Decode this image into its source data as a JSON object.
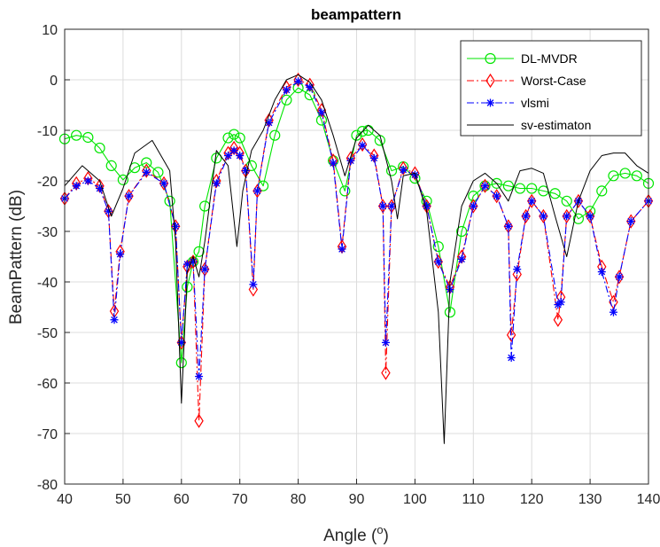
{
  "chart_data": {
    "type": "line",
    "title": "beampattern",
    "xlabel": "Angle (",
    "xlabel_sup": "o",
    "xlabel_end": ")",
    "ylabel": "BeamPattern (dB)",
    "xlim": [
      40,
      140
    ],
    "ylim": [
      -80,
      10
    ],
    "xticks": [
      "40",
      "50",
      "60",
      "70",
      "80",
      "90",
      "100",
      "110",
      "120",
      "130",
      "140"
    ],
    "yticks": [
      "10",
      "0",
      "-10",
      "-20",
      "-30",
      "-40",
      "-50",
      "-60",
      "-70",
      "-80"
    ],
    "grid": true,
    "legend_position": "top-right",
    "series": [
      {
        "name": "DL-MVDR",
        "color": "#00e600",
        "marker": "circle",
        "line": "solid",
        "x": [
          40,
          42,
          44,
          46,
          48,
          50,
          52,
          54,
          56,
          58,
          60,
          61,
          62,
          63,
          64,
          66,
          68,
          69,
          70,
          72,
          74,
          76,
          78,
          80,
          82,
          84,
          86,
          88,
          90,
          91,
          92,
          94,
          96,
          98,
          100,
          102,
          104,
          106,
          108,
          110,
          112,
          114,
          116,
          118,
          120,
          122,
          124,
          126,
          128,
          130,
          132,
          134,
          136,
          138,
          140
        ],
        "y": [
          -11.7,
          -11,
          -11.4,
          -13.5,
          -17,
          -19.8,
          -17.4,
          -16.4,
          -18.3,
          -24,
          -56,
          -41,
          -36,
          -34,
          -25,
          -15.5,
          -11.5,
          -10.8,
          -11.5,
          -17,
          -21,
          -11,
          -4,
          -1.6,
          -3,
          -8,
          -16,
          -22,
          -11,
          -10.2,
          -10,
          -12,
          -18,
          -17.2,
          -19.5,
          -24,
          -33,
          -46,
          -30,
          -23,
          -21,
          -20.5,
          -21,
          -21.5,
          -21.5,
          -22,
          -22.5,
          -24,
          -27.5,
          -26,
          -22,
          -19,
          -18.5,
          -19,
          -20.5
        ]
      },
      {
        "name": "Worst-Case",
        "color": "#ff0000",
        "marker": "diamond",
        "line": "dashdot",
        "x": [
          40,
          42,
          44,
          46,
          47.5,
          48.5,
          49.5,
          51,
          54,
          57,
          59,
          60,
          61,
          62,
          63,
          64,
          66,
          68,
          69,
          70,
          71,
          72.3,
          73,
          75,
          78,
          80,
          82,
          84,
          86,
          87.5,
          89,
          91,
          93,
          94.5,
          95,
          96,
          98,
          100,
          102,
          104,
          106,
          108,
          110,
          112,
          114,
          116,
          116.5,
          117.5,
          119,
          120,
          122,
          124.5,
          125,
          126,
          128,
          130,
          132,
          134,
          135,
          137,
          140
        ],
        "y": [
          -23.5,
          -20.5,
          -19.5,
          -21,
          -26,
          -45.8,
          -34,
          -23,
          -18,
          -20.5,
          -29,
          -52,
          -37,
          -36,
          -67.5,
          -37.5,
          -20,
          -14.5,
          -13.5,
          -14.5,
          -18,
          -41.5,
          -22,
          -8,
          -1.5,
          0,
          -1,
          -6,
          -16,
          -33,
          -15.5,
          -12.8,
          -15,
          -25,
          -58,
          -25,
          -17.5,
          -18.5,
          -25,
          -36,
          -41,
          -35,
          -25,
          -21,
          -23,
          -29,
          -50.5,
          -38.5,
          -27,
          -24,
          -27,
          -47.5,
          -43,
          -27,
          -24,
          -27,
          -37,
          -44,
          -39,
          -28,
          -24
        ]
      },
      {
        "name": "vlsmi",
        "color": "#0000ff",
        "marker": "star",
        "line": "dashdot",
        "x": [
          40,
          42,
          44,
          46,
          47.5,
          48.5,
          49.5,
          51,
          54,
          57,
          59,
          60,
          61,
          62,
          63,
          64,
          66,
          68,
          69,
          70,
          71,
          72.3,
          73,
          75,
          78,
          80,
          82,
          84,
          86,
          87.5,
          89,
          91,
          93,
          94.5,
          95,
          96,
          98,
          100,
          102,
          104,
          106,
          108,
          110,
          112,
          114,
          116,
          116.5,
          117.5,
          119,
          120,
          122,
          124.5,
          125,
          126,
          128,
          130,
          132,
          134,
          135,
          137,
          140
        ],
        "y": [
          -23.5,
          -21,
          -20,
          -21.5,
          -26,
          -47.5,
          -34.5,
          -23,
          -18.3,
          -20.5,
          -29,
          -52,
          -36.5,
          -36,
          -58.7,
          -37.5,
          -20.5,
          -15,
          -14,
          -15,
          -18,
          -40.5,
          -22,
          -8.5,
          -2,
          -0.3,
          -1.5,
          -6.5,
          -16.5,
          -33.5,
          -16,
          -13,
          -15.5,
          -25,
          -52,
          -25,
          -17.8,
          -18.8,
          -25,
          -36,
          -41.5,
          -35.5,
          -25,
          -21,
          -23,
          -29,
          -55,
          -37.5,
          -27,
          -24,
          -27,
          -44.5,
          -44,
          -27,
          -24,
          -27,
          -38,
          -46,
          -39,
          -28,
          -24
        ]
      },
      {
        "name": "sv-estimaton",
        "color": "#000000",
        "marker": "none",
        "line": "solid",
        "x": [
          40,
          43,
          46,
          48,
          50,
          52,
          55,
          58,
          59,
          60,
          61,
          62,
          63,
          64,
          66,
          68,
          69.5,
          70.5,
          72,
          74,
          76,
          78,
          80,
          82,
          84,
          86,
          88,
          90,
          92,
          94,
          96,
          97,
          98,
          100,
          102,
          104,
          105,
          106,
          108,
          110,
          112,
          114,
          116,
          118,
          120,
          122,
          124,
          126,
          128,
          130,
          132,
          134,
          136,
          138,
          140
        ],
        "y": [
          -21,
          -17,
          -20,
          -27,
          -21.5,
          -14.5,
          -12,
          -18,
          -32,
          -64,
          -38,
          -35,
          -39,
          -32,
          -14,
          -17,
          -33,
          -22,
          -14,
          -10,
          -4,
          0,
          1,
          -0.5,
          -4,
          -11,
          -19,
          -11.5,
          -9,
          -11,
          -20,
          -27.5,
          -19,
          -18.5,
          -26,
          -46,
          -72,
          -40,
          -25,
          -20,
          -18.5,
          -20.5,
          -24,
          -18,
          -17.5,
          -18.5,
          -27,
          -35,
          -24,
          -18,
          -15,
          -14.5,
          -14.5,
          -17,
          -18.5
        ]
      }
    ]
  }
}
